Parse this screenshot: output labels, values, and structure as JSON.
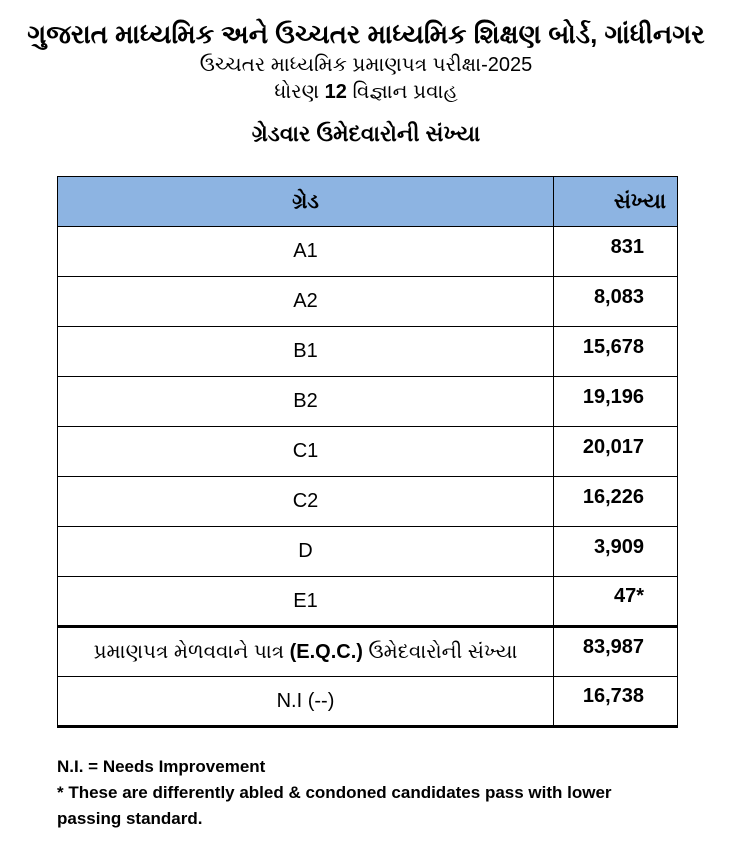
{
  "page": {
    "org_title": "ગુજરાત માધ્યમિક અને ઉચ્ચતર માધ્યમિક શિક્ષણ બોર્ડ, ગાંધીનગર",
    "exam_title": "ઉચ્ચતર માધ્યમિક પ્રમાણપત્ર પરીક્ષા-2025",
    "standard_line": {
      "prefix": "ધોરણ ",
      "number": "12",
      "suffix": " વિજ્ઞાન પ્રવાહ"
    },
    "table_title": "ગ્રેડવાર ઉમેદવારોની સંખ્યા"
  },
  "colors": {
    "table_header_bg": "#8db4e2",
    "border": "#000000",
    "text": "#000000"
  },
  "table": {
    "header": {
      "grade": "ગ્રેડ",
      "count": "સંખ્યા"
    },
    "rows": [
      {
        "grade": "A1",
        "count": "831"
      },
      {
        "grade": "A2",
        "count": "8,083"
      },
      {
        "grade": "B1",
        "count": "15,678"
      },
      {
        "grade": "B2",
        "count": "19,196"
      },
      {
        "grade": "C1",
        "count": "20,017"
      },
      {
        "grade": "C2",
        "count": "16,226"
      },
      {
        "grade": "D",
        "count": "3,909"
      },
      {
        "grade": "E1",
        "count": "47*"
      }
    ],
    "eqc_row": {
      "label_prefix": "પ્રમાણપત્ર મેળવવાને પાત્ર ",
      "label_bold": "(E.Q.C.)",
      "label_suffix": " ઉમેદવારોની સંખ્યા",
      "count": "83,987"
    },
    "ni_row": {
      "label": "N.I (--)",
      "count": "16,738"
    }
  },
  "footnotes": {
    "ni_definition": "N.I. = Needs Improvement",
    "asterisk_note": "* These are differently abled & condoned candidates pass with lower passing standard."
  }
}
